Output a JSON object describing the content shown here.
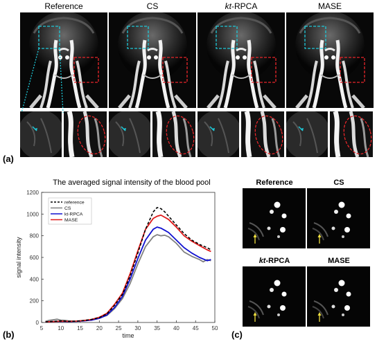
{
  "panel_labels": {
    "a": "(a)",
    "b": "(b)",
    "c": "(c)"
  },
  "mra": {
    "columns": [
      {
        "title": "Reference",
        "italic_prefix": ""
      },
      {
        "title": "CS",
        "italic_prefix": ""
      },
      {
        "title": "-RPCA",
        "italic_prefix": "kt"
      },
      {
        "title": "MASE",
        "italic_prefix": ""
      }
    ],
    "colors": {
      "cyan_box": "#1ec8d8",
      "red_box": "#e8262a",
      "arrow": "#f0e040"
    }
  },
  "axial": {
    "titles": [
      {
        "title": "Reference",
        "italic_prefix": ""
      },
      {
        "title": "CS",
        "italic_prefix": ""
      },
      {
        "title": "-RPCA",
        "italic_prefix": "kt"
      },
      {
        "title": "MASE",
        "italic_prefix": ""
      }
    ]
  },
  "chart_data": {
    "type": "line",
    "title": "The averaged signal intensity of the blood pool",
    "xlabel": "time",
    "ylabel": "signal intensity",
    "xlim": [
      5,
      50
    ],
    "ylim": [
      0,
      1200
    ],
    "xticks": [
      5,
      10,
      15,
      20,
      25,
      30,
      35,
      40,
      45,
      50
    ],
    "yticks": [
      0,
      200,
      400,
      600,
      800,
      1000,
      1200
    ],
    "grid": false,
    "legend_position": "top-left",
    "series": [
      {
        "name": "reference",
        "color": "#000000",
        "dash": true,
        "x": [
          6,
          8,
          10,
          12,
          14,
          16,
          18,
          20,
          22,
          24,
          26,
          28,
          30,
          32,
          34,
          35,
          36,
          37,
          38,
          40,
          42,
          44,
          46,
          48,
          49
        ],
        "y": [
          5,
          10,
          15,
          10,
          12,
          18,
          28,
          45,
          80,
          160,
          260,
          430,
          640,
          860,
          1020,
          1060,
          1050,
          1020,
          980,
          900,
          820,
          760,
          720,
          690,
          670
        ]
      },
      {
        "name": "CS",
        "color": "#808080",
        "dash": false,
        "x": [
          6,
          7,
          8,
          9,
          10,
          11,
          12,
          14,
          16,
          18,
          20,
          22,
          24,
          26,
          28,
          30,
          32,
          34,
          35,
          36,
          37,
          38,
          40,
          42,
          44,
          46,
          47,
          48,
          49
        ],
        "y": [
          10,
          20,
          25,
          30,
          22,
          20,
          15,
          12,
          18,
          25,
          40,
          65,
          130,
          220,
          360,
          540,
          700,
          790,
          810,
          800,
          805,
          790,
          730,
          650,
          610,
          580,
          560,
          580,
          570
        ]
      },
      {
        "name": "kt-RPCA",
        "color": "#1010d0",
        "dash": false,
        "x": [
          6,
          8,
          10,
          12,
          14,
          16,
          18,
          20,
          22,
          24,
          26,
          28,
          30,
          32,
          34,
          35,
          36,
          37,
          38,
          40,
          42,
          44,
          46,
          48,
          49
        ],
        "y": [
          5,
          8,
          10,
          8,
          10,
          15,
          22,
          38,
          70,
          140,
          240,
          400,
          590,
          760,
          860,
          880,
          870,
          850,
          830,
          760,
          690,
          640,
          600,
          570,
          580
        ]
      },
      {
        "name": "MASE",
        "color": "#e01818",
        "dash": false,
        "x": [
          6,
          8,
          10,
          12,
          14,
          16,
          18,
          20,
          22,
          24,
          26,
          28,
          30,
          32,
          34,
          35,
          36,
          37,
          38,
          40,
          42,
          44,
          46,
          48,
          49
        ],
        "y": [
          5,
          8,
          12,
          10,
          12,
          18,
          28,
          48,
          85,
          170,
          270,
          450,
          660,
          860,
          960,
          980,
          990,
          970,
          950,
          880,
          800,
          750,
          710,
          670,
          655
        ]
      }
    ]
  }
}
